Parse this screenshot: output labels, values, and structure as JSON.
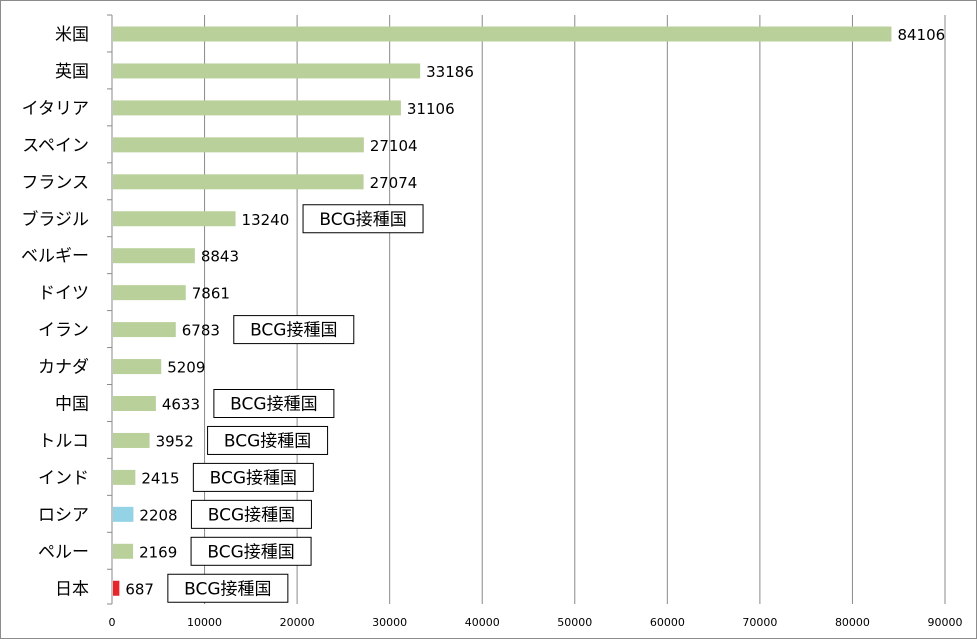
{
  "chart_data": {
    "type": "bar",
    "orientation": "horizontal",
    "categories": [
      "米国",
      "英国",
      "イタリア",
      "スペイン",
      "フランス",
      "ブラジル",
      "ベルギー",
      "ドイツ",
      "イラン",
      "カナダ",
      "中国",
      "トルコ",
      "インド",
      "ロシア",
      "ペルー",
      "日本"
    ],
    "values": [
      84106,
      33186,
      31106,
      27104,
      27074,
      13240,
      8843,
      7861,
      6783,
      5209,
      4633,
      3952,
      2415,
      2208,
      2169,
      687
    ],
    "xlim": [
      0,
      90000
    ],
    "x_ticks": [
      "0",
      "10000",
      "20000",
      "30000",
      "40000",
      "50000",
      "60000",
      "70000",
      "80000",
      "90000"
    ],
    "grid": "vertical",
    "bar_colors": {
      "default": "#b9d09a",
      "ロシア": "#93d3e5",
      "日本": "#e8262a"
    },
    "annotations": [
      {
        "category": "ブラジル",
        "text": "BCG接種国"
      },
      {
        "category": "イラン",
        "text": "BCG接種国"
      },
      {
        "category": "中国",
        "text": "BCG接種国"
      },
      {
        "category": "トルコ",
        "text": "BCG接種国"
      },
      {
        "category": "インド",
        "text": "BCG接種国"
      },
      {
        "category": "ロシア",
        "text": "BCG接種国"
      },
      {
        "category": "ペルー",
        "text": "BCG接種国"
      },
      {
        "category": "日本",
        "text": "BCG接種国"
      }
    ]
  }
}
